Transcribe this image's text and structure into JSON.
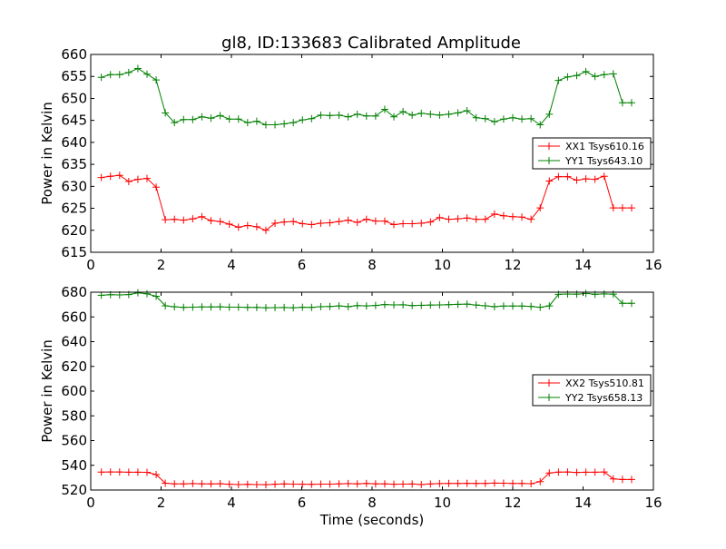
{
  "title": "gl8, ID:133683 Calibrated Amplitude",
  "colors": {
    "red": "#ff0000",
    "green": "#008000"
  },
  "chart_data": [
    {
      "type": "line",
      "title": "gl8, ID:133683 Calibrated Amplitude",
      "xlabel": "",
      "ylabel": "Power in Kelvin",
      "xlim": [
        0,
        16
      ],
      "ylim": [
        615,
        660
      ],
      "xticks": [
        0,
        2,
        4,
        6,
        8,
        10,
        12,
        14,
        16
      ],
      "yticks": [
        615,
        620,
        625,
        630,
        635,
        640,
        645,
        650,
        655,
        660
      ],
      "grid": false,
      "legend": "center-right",
      "x": [
        0.3,
        0.56,
        0.82,
        1.08,
        1.34,
        1.6,
        1.86,
        2.12,
        2.38,
        2.64,
        2.9,
        3.16,
        3.42,
        3.68,
        3.94,
        4.2,
        4.46,
        4.72,
        4.98,
        5.24,
        5.5,
        5.76,
        6.02,
        6.28,
        6.54,
        6.8,
        7.06,
        7.32,
        7.58,
        7.84,
        8.1,
        8.36,
        8.62,
        8.88,
        9.14,
        9.4,
        9.66,
        9.92,
        10.18,
        10.44,
        10.7,
        10.96,
        11.22,
        11.48,
        11.74,
        12.0,
        12.26,
        12.52,
        12.78,
        13.04,
        13.3,
        13.56,
        13.82,
        14.08,
        14.34,
        14.6,
        14.86,
        15.12,
        15.38
      ],
      "series": [
        {
          "name": "XX1 Tsys610.16",
          "color": "#ff0000",
          "values": [
            632.0,
            632.3,
            632.5,
            631.1,
            631.6,
            631.8,
            629.8,
            622.4,
            622.5,
            622.3,
            622.6,
            623.1,
            622.2,
            622.0,
            621.4,
            620.7,
            621.1,
            620.8,
            620.0,
            621.6,
            621.9,
            622.0,
            621.5,
            621.3,
            621.6,
            621.7,
            622.0,
            622.3,
            621.8,
            622.5,
            622.1,
            622.1,
            621.3,
            621.5,
            621.5,
            621.6,
            621.9,
            622.9,
            622.5,
            622.6,
            622.8,
            622.5,
            622.5,
            623.7,
            623.3,
            623.1,
            623.0,
            622.5,
            625.1,
            631.2,
            632.2,
            632.2,
            631.4,
            631.7,
            631.6,
            632.3,
            625.1,
            625.1,
            625.1
          ]
        },
        {
          "name": "YY1 Tsys643.10",
          "color": "#008000",
          "values": [
            654.8,
            655.4,
            655.4,
            655.9,
            656.8,
            655.5,
            654.2,
            646.7,
            644.5,
            645.2,
            645.2,
            645.8,
            645.5,
            646.1,
            645.3,
            645.3,
            644.5,
            644.8,
            644.0,
            644.0,
            644.2,
            644.5,
            645.1,
            645.4,
            646.2,
            646.1,
            646.2,
            645.8,
            646.4,
            646.0,
            646.0,
            647.5,
            645.8,
            647.0,
            646.2,
            646.6,
            646.4,
            646.2,
            646.4,
            646.7,
            647.2,
            645.6,
            645.4,
            644.7,
            645.3,
            645.6,
            645.3,
            645.4,
            644.0,
            646.4,
            654.1,
            654.9,
            655.2,
            656.1,
            655.0,
            655.4,
            655.6,
            649.0,
            649.0
          ]
        }
      ]
    },
    {
      "type": "line",
      "title": "",
      "xlabel": "Time (seconds)",
      "ylabel": "Power in Kelvin",
      "xlim": [
        0,
        16
      ],
      "ylim": [
        520,
        680
      ],
      "xticks": [
        0,
        2,
        4,
        6,
        8,
        10,
        12,
        14,
        16
      ],
      "yticks": [
        520,
        540,
        560,
        580,
        600,
        620,
        640,
        660,
        680
      ],
      "grid": false,
      "legend": "center-right",
      "x": [
        0.3,
        0.56,
        0.82,
        1.08,
        1.34,
        1.6,
        1.86,
        2.12,
        2.38,
        2.64,
        2.9,
        3.16,
        3.42,
        3.68,
        3.94,
        4.2,
        4.46,
        4.72,
        4.98,
        5.24,
        5.5,
        5.76,
        6.02,
        6.28,
        6.54,
        6.8,
        7.06,
        7.32,
        7.58,
        7.84,
        8.1,
        8.36,
        8.62,
        8.88,
        9.14,
        9.4,
        9.66,
        9.92,
        10.18,
        10.44,
        10.7,
        10.96,
        11.22,
        11.48,
        11.74,
        12.0,
        12.26,
        12.52,
        12.78,
        13.04,
        13.3,
        13.56,
        13.82,
        14.08,
        14.34,
        14.6,
        14.86,
        15.12,
        15.38
      ],
      "series": [
        {
          "name": "XX2 Tsys510.81",
          "color": "#ff0000",
          "values": [
            534.5,
            534.6,
            534.6,
            534.4,
            534.4,
            534.3,
            532.5,
            525.5,
            525.0,
            525.0,
            525.2,
            525.0,
            525.0,
            525.1,
            524.7,
            524.4,
            524.6,
            524.4,
            524.3,
            524.7,
            524.9,
            524.8,
            524.7,
            524.6,
            524.8,
            524.8,
            525.0,
            525.2,
            525.0,
            525.3,
            525.0,
            525.0,
            524.7,
            524.8,
            524.9,
            524.4,
            524.9,
            525.2,
            525.3,
            525.3,
            525.4,
            525.3,
            525.3,
            525.6,
            525.5,
            525.3,
            525.3,
            525.1,
            526.8,
            533.8,
            534.5,
            534.6,
            534.2,
            534.4,
            534.4,
            534.6,
            529.0,
            528.5,
            528.5
          ]
        },
        {
          "name": "YY2 Tsys658.13",
          "color": "#008000",
          "values": [
            677.5,
            678.0,
            677.8,
            678.1,
            679.5,
            678.7,
            676.7,
            669.0,
            668.2,
            667.7,
            667.9,
            668.1,
            668.1,
            668.2,
            667.9,
            667.9,
            667.7,
            667.7,
            667.4,
            667.5,
            667.6,
            667.4,
            667.8,
            667.7,
            668.3,
            668.4,
            668.9,
            668.3,
            669.2,
            668.9,
            669.3,
            670.0,
            669.7,
            669.8,
            669.2,
            669.4,
            669.6,
            669.7,
            669.9,
            670.2,
            670.4,
            669.6,
            669.0,
            668.3,
            668.8,
            668.8,
            668.8,
            668.5,
            667.8,
            668.9,
            678.3,
            678.5,
            678.4,
            679.0,
            678.3,
            678.6,
            678.4,
            671.0,
            671.0
          ]
        }
      ]
    }
  ]
}
